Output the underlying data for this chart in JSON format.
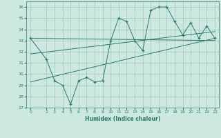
{
  "xlabel": "Humidex (Indice chaleur)",
  "bg_color": "#cde8e0",
  "grid_color": "#9dc8bc",
  "line_color": "#2a7a6a",
  "xlim": [
    -0.5,
    23.5
  ],
  "ylim": [
    27,
    36.5
  ],
  "yticks": [
    27,
    28,
    29,
    30,
    31,
    32,
    33,
    34,
    35,
    36
  ],
  "xticks": [
    0,
    2,
    3,
    4,
    5,
    6,
    7,
    8,
    9,
    10,
    11,
    12,
    13,
    14,
    15,
    16,
    17,
    18,
    19,
    20,
    21,
    22,
    23
  ],
  "data_x": [
    0,
    2,
    3,
    4,
    5,
    6,
    7,
    8,
    9,
    10,
    11,
    12,
    13,
    14,
    15,
    16,
    17,
    18,
    19,
    20,
    21,
    22,
    23
  ],
  "data_y": [
    33.2,
    31.3,
    29.4,
    29.0,
    27.3,
    29.4,
    29.7,
    29.3,
    29.4,
    33.0,
    35.0,
    34.7,
    33.0,
    32.1,
    35.7,
    36.0,
    36.0,
    34.7,
    33.5,
    34.6,
    33.2,
    34.3,
    33.2
  ],
  "trend1_x": [
    0,
    23
  ],
  "trend1_y": [
    33.2,
    33.0
  ],
  "trend2_x": [
    0,
    23
  ],
  "trend2_y": [
    31.8,
    33.8
  ],
  "trend3_x": [
    0,
    23
  ],
  "trend3_y": [
    29.3,
    33.2
  ]
}
